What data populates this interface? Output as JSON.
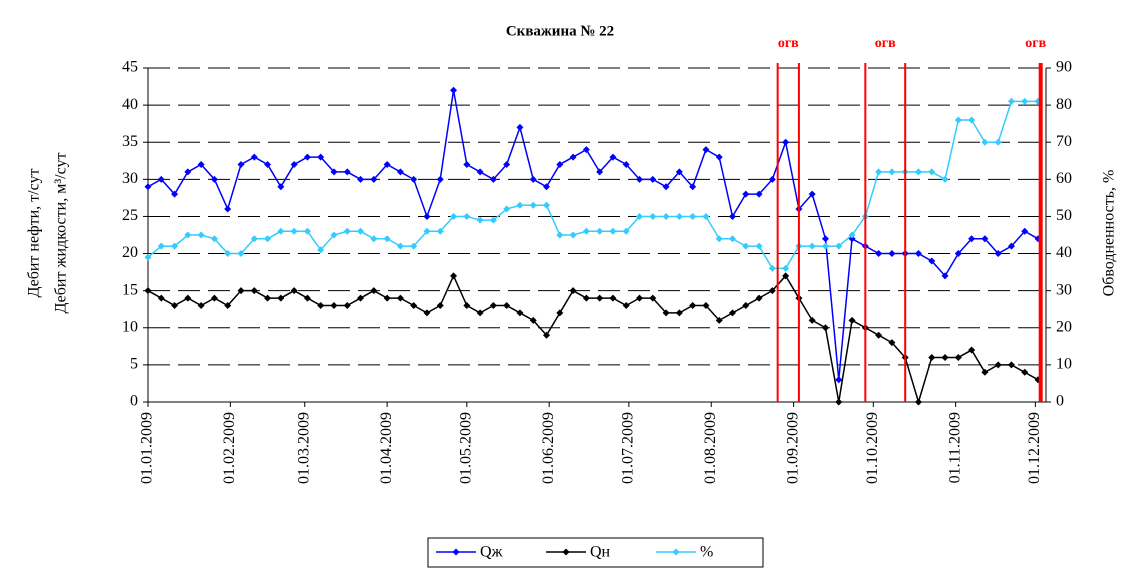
{
  "chart_data": {
    "type": "line",
    "title": "Скважина № 22",
    "ylabel": [
      "Дебит нефти, т/сут",
      "Дебит жидкости, м³/сут"
    ],
    "y2label": "Обводненность, %",
    "xlim": [
      "2009-01-01",
      "2009-12-05"
    ],
    "xticks": [
      {
        "value": "2009-01-01",
        "label": "01.01.2009"
      },
      {
        "value": "2009-02-01",
        "label": "01.02.2009"
      },
      {
        "value": "2009-03-01",
        "label": "01.03.2009"
      },
      {
        "value": "2009-04-01",
        "label": "01.04.2009"
      },
      {
        "value": "2009-05-01",
        "label": "01.05.2009"
      },
      {
        "value": "2009-06-01",
        "label": "01.06.2009"
      },
      {
        "value": "2009-07-01",
        "label": "01.07.2009"
      },
      {
        "value": "2009-08-01",
        "label": "01.08.2009"
      },
      {
        "value": "2009-09-01",
        "label": "01.09.2009"
      },
      {
        "value": "2009-10-01",
        "label": "01.10.2009"
      },
      {
        "value": "2009-11-01",
        "label": "01.11.2009"
      },
      {
        "value": "2009-12-01",
        "label": "01.12.2009"
      }
    ],
    "ylim": [
      0,
      45
    ],
    "yticks": [
      0,
      5,
      10,
      15,
      20,
      25,
      30,
      35,
      40,
      45
    ],
    "y2lim": [
      0,
      90
    ],
    "y2ticks": [
      0,
      10,
      20,
      30,
      40,
      50,
      60,
      70,
      80,
      90
    ],
    "grid": true,
    "x": [
      "2009-01-01",
      "2009-01-06",
      "2009-01-11",
      "2009-01-16",
      "2009-01-21",
      "2009-01-26",
      "2009-01-31",
      "2009-02-05",
      "2009-02-10",
      "2009-02-15",
      "2009-02-20",
      "2009-02-25",
      "2009-03-02",
      "2009-03-07",
      "2009-03-12",
      "2009-03-17",
      "2009-03-22",
      "2009-03-27",
      "2009-04-01",
      "2009-04-06",
      "2009-04-11",
      "2009-04-16",
      "2009-04-21",
      "2009-04-26",
      "2009-05-01",
      "2009-05-06",
      "2009-05-11",
      "2009-05-16",
      "2009-05-21",
      "2009-05-26",
      "2009-05-31",
      "2009-06-05",
      "2009-06-10",
      "2009-06-15",
      "2009-06-20",
      "2009-06-25",
      "2009-06-30",
      "2009-07-05",
      "2009-07-10",
      "2009-07-15",
      "2009-07-20",
      "2009-07-25",
      "2009-07-30",
      "2009-08-04",
      "2009-08-09",
      "2009-08-14",
      "2009-08-19",
      "2009-08-24",
      "2009-08-29",
      "2009-09-03",
      "2009-09-08",
      "2009-09-13",
      "2009-09-18",
      "2009-09-23",
      "2009-09-28",
      "2009-10-03",
      "2009-10-08",
      "2009-10-13",
      "2009-10-18",
      "2009-10-23",
      "2009-10-28",
      "2009-11-02",
      "2009-11-07",
      "2009-11-12",
      "2009-11-17",
      "2009-11-22",
      "2009-11-27",
      "2009-12-02"
    ],
    "series": [
      {
        "name": "Qж",
        "color": "#0000ff",
        "values": [
          29,
          30,
          28,
          31,
          32,
          30,
          26,
          32,
          33,
          32,
          29,
          32,
          33,
          33,
          31,
          31,
          30,
          30,
          32,
          31,
          30,
          25,
          30,
          42,
          32,
          31,
          30,
          32,
          37,
          30,
          29,
          32,
          33,
          34,
          31,
          33,
          32,
          30,
          30,
          29,
          31,
          29,
          34,
          33,
          25,
          28,
          28,
          30,
          35,
          26,
          28,
          22,
          3,
          22,
          21,
          20,
          20,
          20,
          20,
          19,
          17,
          20,
          22,
          22,
          20,
          21,
          23,
          22
        ]
      },
      {
        "name": "Qн",
        "color": "#000000",
        "values": [
          15,
          14,
          13,
          14,
          13,
          14,
          13,
          15,
          15,
          14,
          14,
          15,
          14,
          13,
          13,
          13,
          14,
          15,
          14,
          14,
          13,
          12,
          13,
          17,
          13,
          12,
          13,
          13,
          12,
          11,
          9,
          12,
          15,
          14,
          14,
          14,
          13,
          14,
          14,
          12,
          12,
          13,
          13,
          11,
          12,
          13,
          14,
          15,
          17,
          14,
          11,
          10,
          0,
          11,
          10,
          9,
          8,
          6,
          0,
          6,
          6,
          6,
          7,
          4,
          5,
          5,
          4,
          3
        ]
      },
      {
        "name": "%",
        "color": "#33ccff",
        "axis": "y2",
        "values": [
          39,
          42,
          42,
          45,
          45,
          44,
          40,
          40,
          44,
          44,
          46,
          46,
          46,
          41,
          45,
          46,
          46,
          44,
          44,
          42,
          42,
          46,
          46,
          50,
          50,
          49,
          49,
          52,
          53,
          53,
          53,
          45,
          45,
          46,
          46,
          46,
          46,
          50,
          50,
          50,
          50,
          50,
          50,
          44,
          44,
          42,
          42,
          36,
          36,
          42,
          42,
          42,
          42,
          45,
          50,
          62,
          62,
          62,
          62,
          62,
          60,
          76,
          76,
          70,
          70,
          81,
          81,
          81
        ]
      }
    ],
    "events": [
      {
        "label": "огв",
        "x": [
          "2009-08-26",
          "2009-09-03"
        ]
      },
      {
        "label": "огв",
        "x": [
          "2009-09-28",
          "2009-10-13"
        ]
      },
      {
        "label": "огв",
        "x": [
          "2009-12-03"
        ]
      }
    ],
    "event_color": "#ff0000"
  }
}
